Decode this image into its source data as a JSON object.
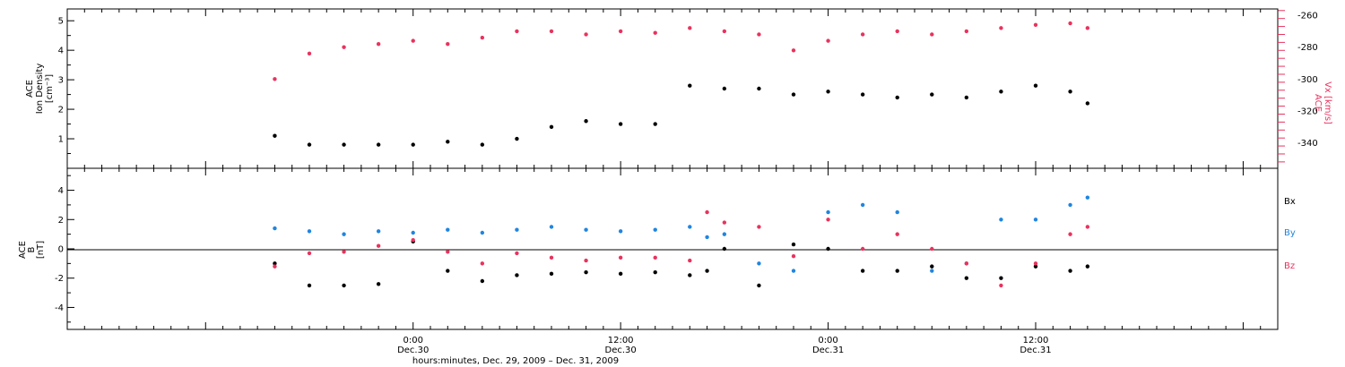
{
  "colors": {
    "black": "#000000",
    "red": "#e8335e",
    "blue": "#1f85e0"
  },
  "x_axis": {
    "label": "hours:minutes, Dec. 29, 2009 – Dec. 31, 2009",
    "range_hours": [
      -20,
      50
    ],
    "ticks": [
      {
        "h": 0,
        "time": "0:00",
        "date": "Dec.30"
      },
      {
        "h": 12,
        "time": "12:00",
        "date": "Dec.30"
      },
      {
        "h": 24,
        "time": "0:00",
        "date": "Dec.31"
      },
      {
        "h": 36,
        "time": "12:00",
        "date": "Dec.31"
      }
    ]
  },
  "chart_data": [
    {
      "type": "scatter",
      "panel": "top",
      "ylabel_lines": [
        "ACE",
        "Ion Density",
        "[cm⁻³]"
      ],
      "ylim": [
        0,
        5.4
      ],
      "yticks": [
        1,
        2,
        3,
        4,
        5
      ],
      "right_axis": {
        "ylabel_lines": [
          "ACE",
          "Vx [km/s]"
        ],
        "ylim": [
          -356,
          -256
        ],
        "yticks": [
          -340,
          -320,
          -300,
          -280,
          -260
        ]
      },
      "series": [
        {
          "name": "Ion Density",
          "axis": "left",
          "color": "black",
          "x": [
            -8,
            -6,
            -4,
            -2,
            0,
            2,
            4,
            6,
            8,
            10,
            12,
            14,
            16,
            18,
            20,
            22,
            24,
            26,
            28,
            30,
            32,
            34,
            36,
            38,
            39
          ],
          "y": [
            1.1,
            0.8,
            0.8,
            0.8,
            0.8,
            0.9,
            0.8,
            1.0,
            1.4,
            1.6,
            1.5,
            1.5,
            2.8,
            2.7,
            2.7,
            2.5,
            2.6,
            2.5,
            2.4,
            2.5,
            2.4,
            2.6,
            2.8,
            2.6,
            2.2
          ]
        },
        {
          "name": "Vx",
          "axis": "right",
          "color": "red",
          "x": [
            -8,
            -6,
            -4,
            -2,
            0,
            2,
            4,
            6,
            8,
            10,
            12,
            14,
            16,
            18,
            20,
            22,
            24,
            26,
            28,
            30,
            32,
            34,
            36,
            38,
            39
          ],
          "y": [
            -300,
            -284,
            -280,
            -278,
            -276,
            -278,
            -274,
            -270,
            -270,
            -272,
            -270,
            -271,
            -268,
            -270,
            -272,
            -282,
            -276,
            -272,
            -270,
            -272,
            -270,
            -268,
            -266,
            -265,
            -268
          ]
        }
      ]
    },
    {
      "type": "scatter",
      "panel": "bottom",
      "ylabel_lines": [
        "ACE",
        "B",
        "[nT]"
      ],
      "ylim": [
        -5.5,
        5.5
      ],
      "yticks": [
        -4,
        -2,
        0,
        2,
        4
      ],
      "reference_line": 0,
      "legend": {
        "position": "right",
        "entries": [
          "Bx",
          "By",
          "Bz"
        ]
      },
      "series": [
        {
          "name": "Bx",
          "color": "black",
          "x": [
            -8,
            -6,
            -4,
            -2,
            0,
            2,
            4,
            6,
            8,
            10,
            12,
            14,
            16,
            17,
            18,
            20,
            22,
            24,
            26,
            28,
            30,
            32,
            34,
            36,
            38,
            39
          ],
          "y": [
            -1.0,
            -2.5,
            -2.5,
            -2.4,
            0.5,
            -1.5,
            -2.2,
            -1.8,
            -1.7,
            -1.6,
            -1.7,
            -1.6,
            -1.8,
            -1.5,
            0.0,
            -2.5,
            0.3,
            0.0,
            -1.5,
            -1.5,
            -1.2,
            -2.0,
            -2.0,
            -1.2,
            -1.5,
            -1.2
          ]
        },
        {
          "name": "By",
          "color": "blue",
          "x": [
            -8,
            -6,
            -4,
            -2,
            0,
            2,
            4,
            6,
            8,
            10,
            12,
            14,
            16,
            17,
            18,
            20,
            22,
            24,
            26,
            28,
            30,
            32,
            34,
            36,
            38,
            39
          ],
          "y": [
            1.4,
            1.2,
            1.0,
            1.2,
            1.1,
            1.3,
            1.1,
            1.3,
            1.5,
            1.3,
            1.2,
            1.3,
            1.5,
            0.8,
            1.0,
            -1.0,
            -1.5,
            2.5,
            3.0,
            2.5,
            -1.5,
            -1.0,
            2.0,
            2.0,
            3.0,
            3.5
          ]
        },
        {
          "name": "Bz",
          "color": "red",
          "x": [
            -8,
            -6,
            -4,
            -2,
            0,
            2,
            4,
            6,
            8,
            10,
            12,
            14,
            16,
            17,
            18,
            20,
            22,
            24,
            26,
            28,
            30,
            32,
            34,
            36,
            38,
            39
          ],
          "y": [
            -1.2,
            -0.3,
            -0.2,
            0.2,
            0.6,
            -0.2,
            -1.0,
            -0.3,
            -0.6,
            -0.8,
            -0.6,
            -0.6,
            -0.8,
            2.5,
            1.8,
            1.5,
            -0.5,
            2.0,
            0.0,
            1.0,
            0.0,
            -1.0,
            -2.5,
            -1.0,
            1.0,
            1.5
          ]
        }
      ]
    }
  ]
}
